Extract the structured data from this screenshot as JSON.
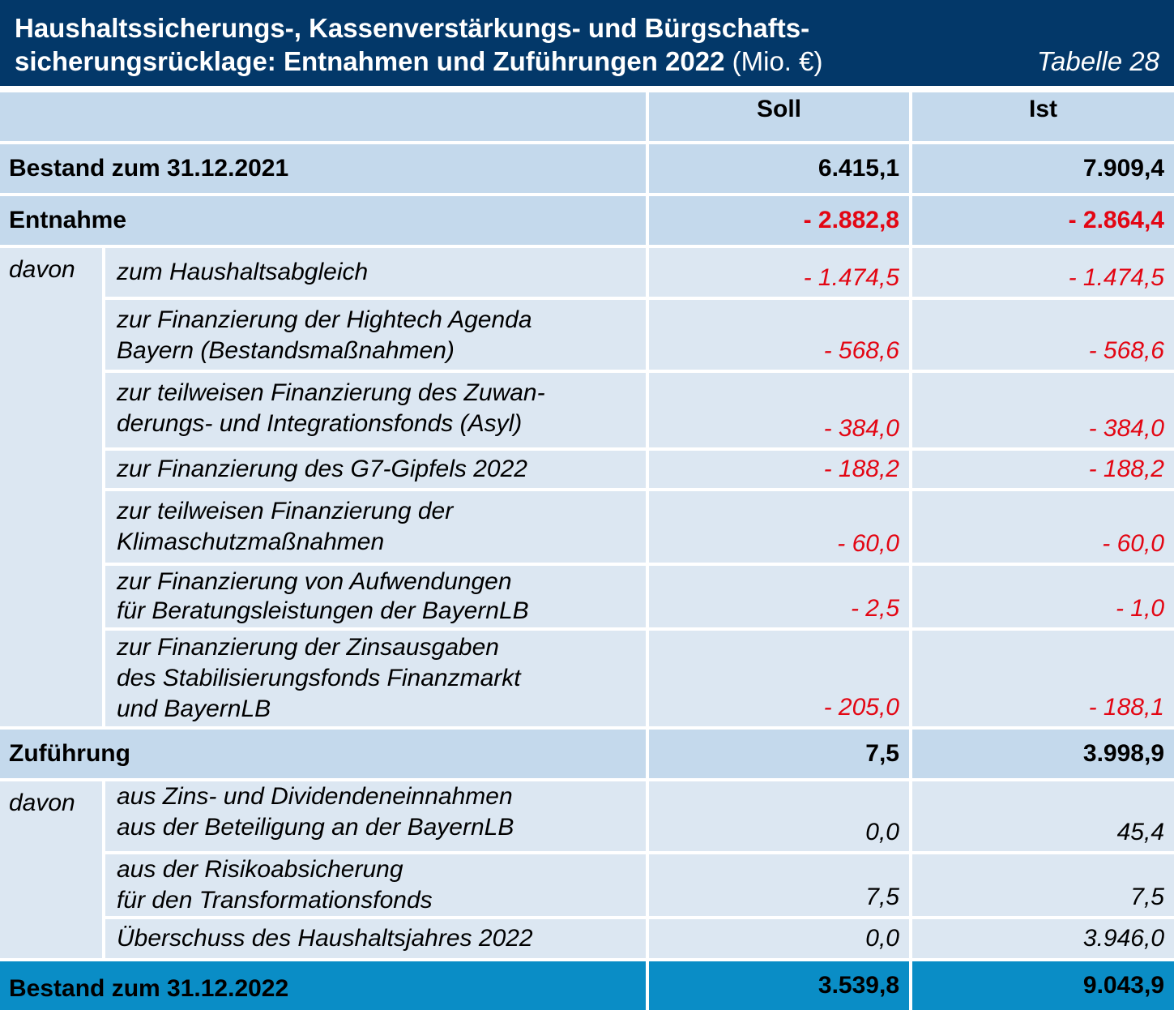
{
  "title": {
    "line1": "Haushaltssicherungs-, Kassenverstärkungs- und Bürgschafts-",
    "line2": "sicherungsrücklage: Entnahmen und Zuführungen 2022",
    "unit": "(Mio. €)",
    "table_no": "Tabelle 28"
  },
  "columns": {
    "soll": "Soll",
    "ist": "Ist"
  },
  "bestand_2021": {
    "label": "Bestand zum 31.12.2021",
    "soll": "6.415,1",
    "ist": "7.909,4"
  },
  "entnahme": {
    "label": "Entnahme",
    "soll": "- 2.882,8",
    "ist": "- 2.864,4",
    "davon": "davon",
    "items": [
      {
        "line1": "zum Haushaltsabgleich",
        "line2": "",
        "line3": "",
        "soll": "- 1.474,5",
        "ist": "- 1.474,5"
      },
      {
        "line1": "zur Finanzierung der Hightech Agenda",
        "line2": "Bayern (Bestandsmaßnahmen)",
        "line3": "",
        "soll": "- 568,6",
        "ist": "- 568,6"
      },
      {
        "line1": "zur teilweisen Finanzierung des Zuwan-",
        "line2": "derungs- und Integrationsfonds (Asyl)",
        "line3": "",
        "soll": "- 384,0",
        "ist": "- 384,0"
      },
      {
        "line1": "zur Finanzierung des G7-Gipfels 2022",
        "line2": "",
        "line3": "",
        "soll": "- 188,2",
        "ist": "- 188,2"
      },
      {
        "line1": "zur teilweisen Finanzierung der",
        "line2": "Klimaschutzmaßnahmen",
        "line3": "",
        "soll": "- 60,0",
        "ist": "- 60,0"
      },
      {
        "line1": "zur Finanzierung von Aufwendungen",
        "line2": "für Beratungsleistungen der BayernLB",
        "line3": "",
        "soll": "- 2,5",
        "ist": "- 1,0"
      },
      {
        "line1": "zur Finanzierung der Zinsausgaben",
        "line2": "des Stabilisierungsfonds Finanzmarkt",
        "line3": "und BayernLB",
        "soll": "- 205,0",
        "ist": "- 188,1"
      }
    ]
  },
  "zufuehrung": {
    "label": "Zuführung",
    "soll": "7,5",
    "ist": "3.998,9",
    "davon": "davon",
    "items": [
      {
        "line1": "aus Zins- und Dividendeneinnahmen",
        "line2": "aus der Beteiligung an der BayernLB",
        "soll": "0,0",
        "ist": "45,4"
      },
      {
        "line1": "aus der Risikoabsicherung",
        "line2": "für den Transformationsfonds",
        "soll": "7,5",
        "ist": "7,5"
      },
      {
        "line1": "Überschuss des Haushaltsjahres 2022",
        "line2": "",
        "soll": "0,0",
        "ist": "3.946,0"
      }
    ]
  },
  "bestand_2022": {
    "label": "Bestand zum 31.12.2022",
    "soll": "3.539,8",
    "ist": "9.043,9"
  },
  "colors": {
    "title_bg": "#033869",
    "header_bg": "#c4d9ec",
    "sub_bg": "#dce7f2",
    "final_bg": "#0a8dc6",
    "negative": "#e30613"
  }
}
